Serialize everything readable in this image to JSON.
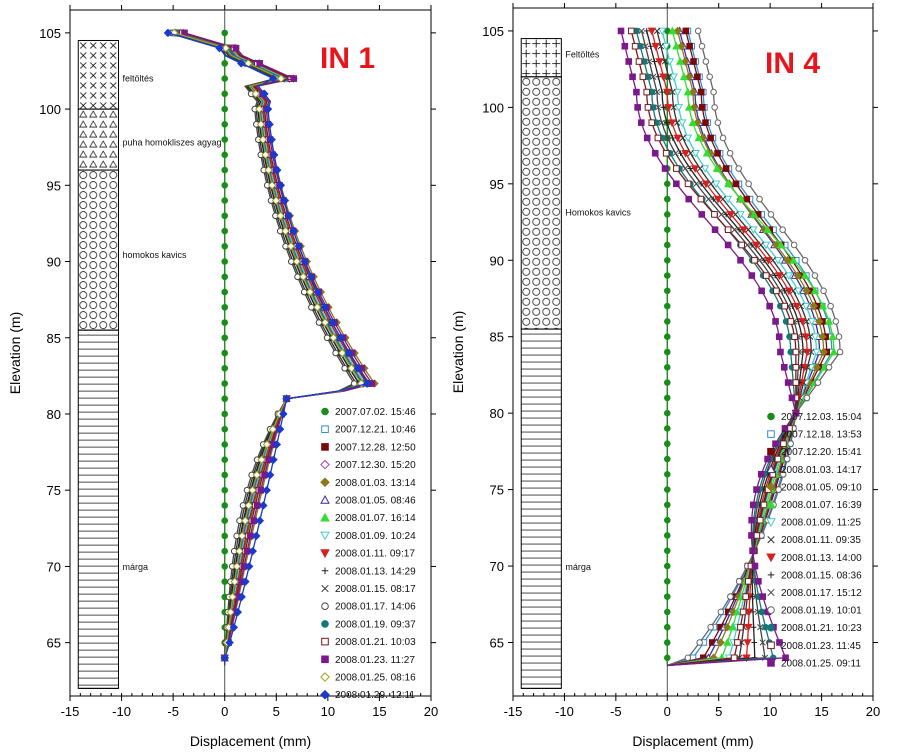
{
  "chart_data": [
    {
      "type": "line",
      "title": "IN 1",
      "xlabel": "Displacement (mm)",
      "ylabel": "Elevation (m)",
      "xlim": [
        -15,
        20
      ],
      "ylim": [
        61.5,
        106.5
      ],
      "xticks": [
        -15,
        -10,
        -5,
        0,
        5,
        10,
        15,
        20
      ],
      "yticks": [
        65,
        70,
        75,
        80,
        85,
        90,
        95,
        100,
        105
      ],
      "legend_position": "lower-right",
      "layers": [
        {
          "name": "feltöltés",
          "top": 104.5,
          "bottom": 100,
          "pattern": "cross"
        },
        {
          "name": "puha homokliszes agyag",
          "top": 100,
          "bottom": 96,
          "pattern": "triangle"
        },
        {
          "name": "homokos kavics",
          "top": 96,
          "bottom": 85.5,
          "pattern": "circle"
        },
        {
          "name": "márga",
          "top": 85.5,
          "bottom": 62,
          "pattern": "hline"
        }
      ],
      "series": [
        {
          "name": "2007.07.02. 15:46",
          "color": "#1a8c1a",
          "marker": "circle-filled",
          "peak": 0,
          "base": 0,
          "top_x": 0
        },
        {
          "name": "2007.12.21. 10:46",
          "color": "#2f8fd6",
          "marker": "square-open",
          "peak": 16.4,
          "base": 2.5,
          "top_x": -5
        },
        {
          "name": "2007.12.28. 12:50",
          "color": "#7a0a0a",
          "marker": "square-filled",
          "peak": 16.8,
          "base": 3.2,
          "top_x": -4.5
        },
        {
          "name": "2007.12.30. 15:20",
          "color": "#a040c0",
          "marker": "diamond-open",
          "peak": 16.5,
          "base": 2.8,
          "top_x": -4.6
        },
        {
          "name": "2008.01.03. 13:14",
          "color": "#8c7a1a",
          "marker": "diamond-filled",
          "peak": 17.2,
          "base": 4.5,
          "top_x": -4.0
        },
        {
          "name": "2008.01.05. 08:46",
          "color": "#3a2a9a",
          "marker": "triangle-open",
          "peak": 16.2,
          "base": 2.2,
          "top_x": -4.8
        },
        {
          "name": "2008.01.07. 16:14",
          "color": "#33dd33",
          "marker": "triangle-filled",
          "peak": 16.9,
          "base": 3.6,
          "top_x": -4.3
        },
        {
          "name": "2008.01.09. 10:24",
          "color": "#44cccc",
          "marker": "triangle-down-open",
          "peak": 16.6,
          "base": 3.0,
          "top_x": -4.4
        },
        {
          "name": "2008.01.11. 09:17",
          "color": "#d42020",
          "marker": "triangle-down-filled",
          "peak": 16.7,
          "base": 3.4,
          "top_x": -4.2
        },
        {
          "name": "2008.01.13. 14:29",
          "color": "#222222",
          "marker": "plus",
          "peak": 16.3,
          "base": 2.0,
          "top_x": -5.2
        },
        {
          "name": "2008.01.15. 08:17",
          "color": "#333333",
          "marker": "cross",
          "peak": 16.1,
          "base": 1.6,
          "top_x": -5.4
        },
        {
          "name": "2008.01.17. 14:06",
          "color": "#444444",
          "marker": "circle-open",
          "peak": 16.0,
          "base": 1.2,
          "top_x": -5.1
        },
        {
          "name": "2008.01.19. 09:37",
          "color": "#127878",
          "marker": "circle-filled",
          "peak": 16.5,
          "base": 2.6,
          "top_x": -4.7
        },
        {
          "name": "2008.01.21. 10:03",
          "color": "#7a1a1a",
          "marker": "square-open",
          "peak": 16.8,
          "base": 3.8,
          "top_x": -4.1
        },
        {
          "name": "2008.01.23. 11:27",
          "color": "#7a1a8a",
          "marker": "square-filled",
          "peak": 17.0,
          "base": 4.2,
          "top_x": -3.9
        },
        {
          "name": "2008.01.25. 08:16",
          "color": "#a0a020",
          "marker": "diamond-open",
          "peak": 16.4,
          "base": 2.4,
          "top_x": -4.9
        },
        {
          "name": "2008.01.29. 12:11",
          "color": "#1a3acc",
          "marker": "diamond-filled",
          "peak": 16.0,
          "base": 5.5,
          "top_x": -5.5
        }
      ]
    },
    {
      "type": "line",
      "title": "IN 4",
      "xlabel": "Displacement (mm)",
      "ylabel": "Elevation (m)",
      "xlim": [
        -15,
        20
      ],
      "ylim": [
        61.5,
        106.5
      ],
      "xticks": [
        -15,
        -10,
        -5,
        0,
        5,
        10,
        15,
        20
      ],
      "yticks": [
        65,
        70,
        75,
        80,
        85,
        90,
        95,
        100,
        105
      ],
      "legend_position": "lower-right",
      "layers": [
        {
          "name": "Feltöltés",
          "top": 104.5,
          "bottom": 102,
          "pattern": "plus"
        },
        {
          "name": "Homokos kavics",
          "top": 102,
          "bottom": 85.5,
          "pattern": "circle"
        },
        {
          "name": "márga",
          "top": 85.5,
          "bottom": 62,
          "pattern": "hline"
        }
      ],
      "series": [
        {
          "name": "2007.12.03. 15:04",
          "color": "#1a8c1a",
          "marker": "circle-filled",
          "peak": 0,
          "base": 0,
          "top_x": 0
        },
        {
          "name": "2007.12.18. 13:53",
          "color": "#2f8fd6",
          "marker": "square-open",
          "peak": 16.0,
          "base": 10.0,
          "top_x": 2.0
        },
        {
          "name": "2007.12.20. 15:41",
          "color": "#7a0a0a",
          "marker": "square-filled",
          "peak": 15.5,
          "base": 9.0,
          "top_x": 1.8
        },
        {
          "name": "2008.01.03. 14:17",
          "color": "#3a2a9a",
          "marker": "triangle-open",
          "peak": 14.8,
          "base": 8.5,
          "top_x": 1.2
        },
        {
          "name": "2008.01.05. 09:10",
          "color": "#8c7a1a",
          "marker": "diamond-filled",
          "peak": 15.2,
          "base": 8.0,
          "top_x": 1.0
        },
        {
          "name": "2008.01.07. 16:39",
          "color": "#33dd33",
          "marker": "triangle-filled",
          "peak": 16.2,
          "base": 7.2,
          "top_x": 0.5
        },
        {
          "name": "2008.01.09. 11:25",
          "color": "#44cccc",
          "marker": "triangle-down-open",
          "peak": 14.5,
          "base": 6.5,
          "top_x": -0.5
        },
        {
          "name": "2008.01.11. 09:35",
          "color": "#333333",
          "marker": "cross",
          "peak": 14.0,
          "base": 5.5,
          "top_x": -1.0
        },
        {
          "name": "2008.01.13. 14:00",
          "color": "#d42020",
          "marker": "triangle-down-filled",
          "peak": 13.6,
          "base": 4.8,
          "top_x": -1.5
        },
        {
          "name": "2008.01.15. 08:36",
          "color": "#222222",
          "marker": "plus",
          "peak": 13.2,
          "base": 4.0,
          "top_x": -2.0
        },
        {
          "name": "2008.01.17. 15:12",
          "color": "#444444",
          "marker": "cross",
          "peak": 12.8,
          "base": 3.0,
          "top_x": -2.5
        },
        {
          "name": "2008.01.19. 10:01",
          "color": "#666666",
          "marker": "circle-open",
          "peak": 16.8,
          "base": 10.5,
          "top_x": 3.0
        },
        {
          "name": "2008.01.21. 10:23",
          "color": "#127878",
          "marker": "circle-filled",
          "peak": 12.0,
          "base": 2.2,
          "top_x": -3.0
        },
        {
          "name": "2008.01.23. 11:45",
          "color": "#7a1a1a",
          "marker": "square-open",
          "peak": 12.5,
          "base": 6.0,
          "top_x": -3.5
        },
        {
          "name": "2008.01.25. 09:11",
          "color": "#7a1a8a",
          "marker": "square-filled",
          "peak": 11.0,
          "base": 1.0,
          "top_x": -4.5
        }
      ]
    }
  ]
}
